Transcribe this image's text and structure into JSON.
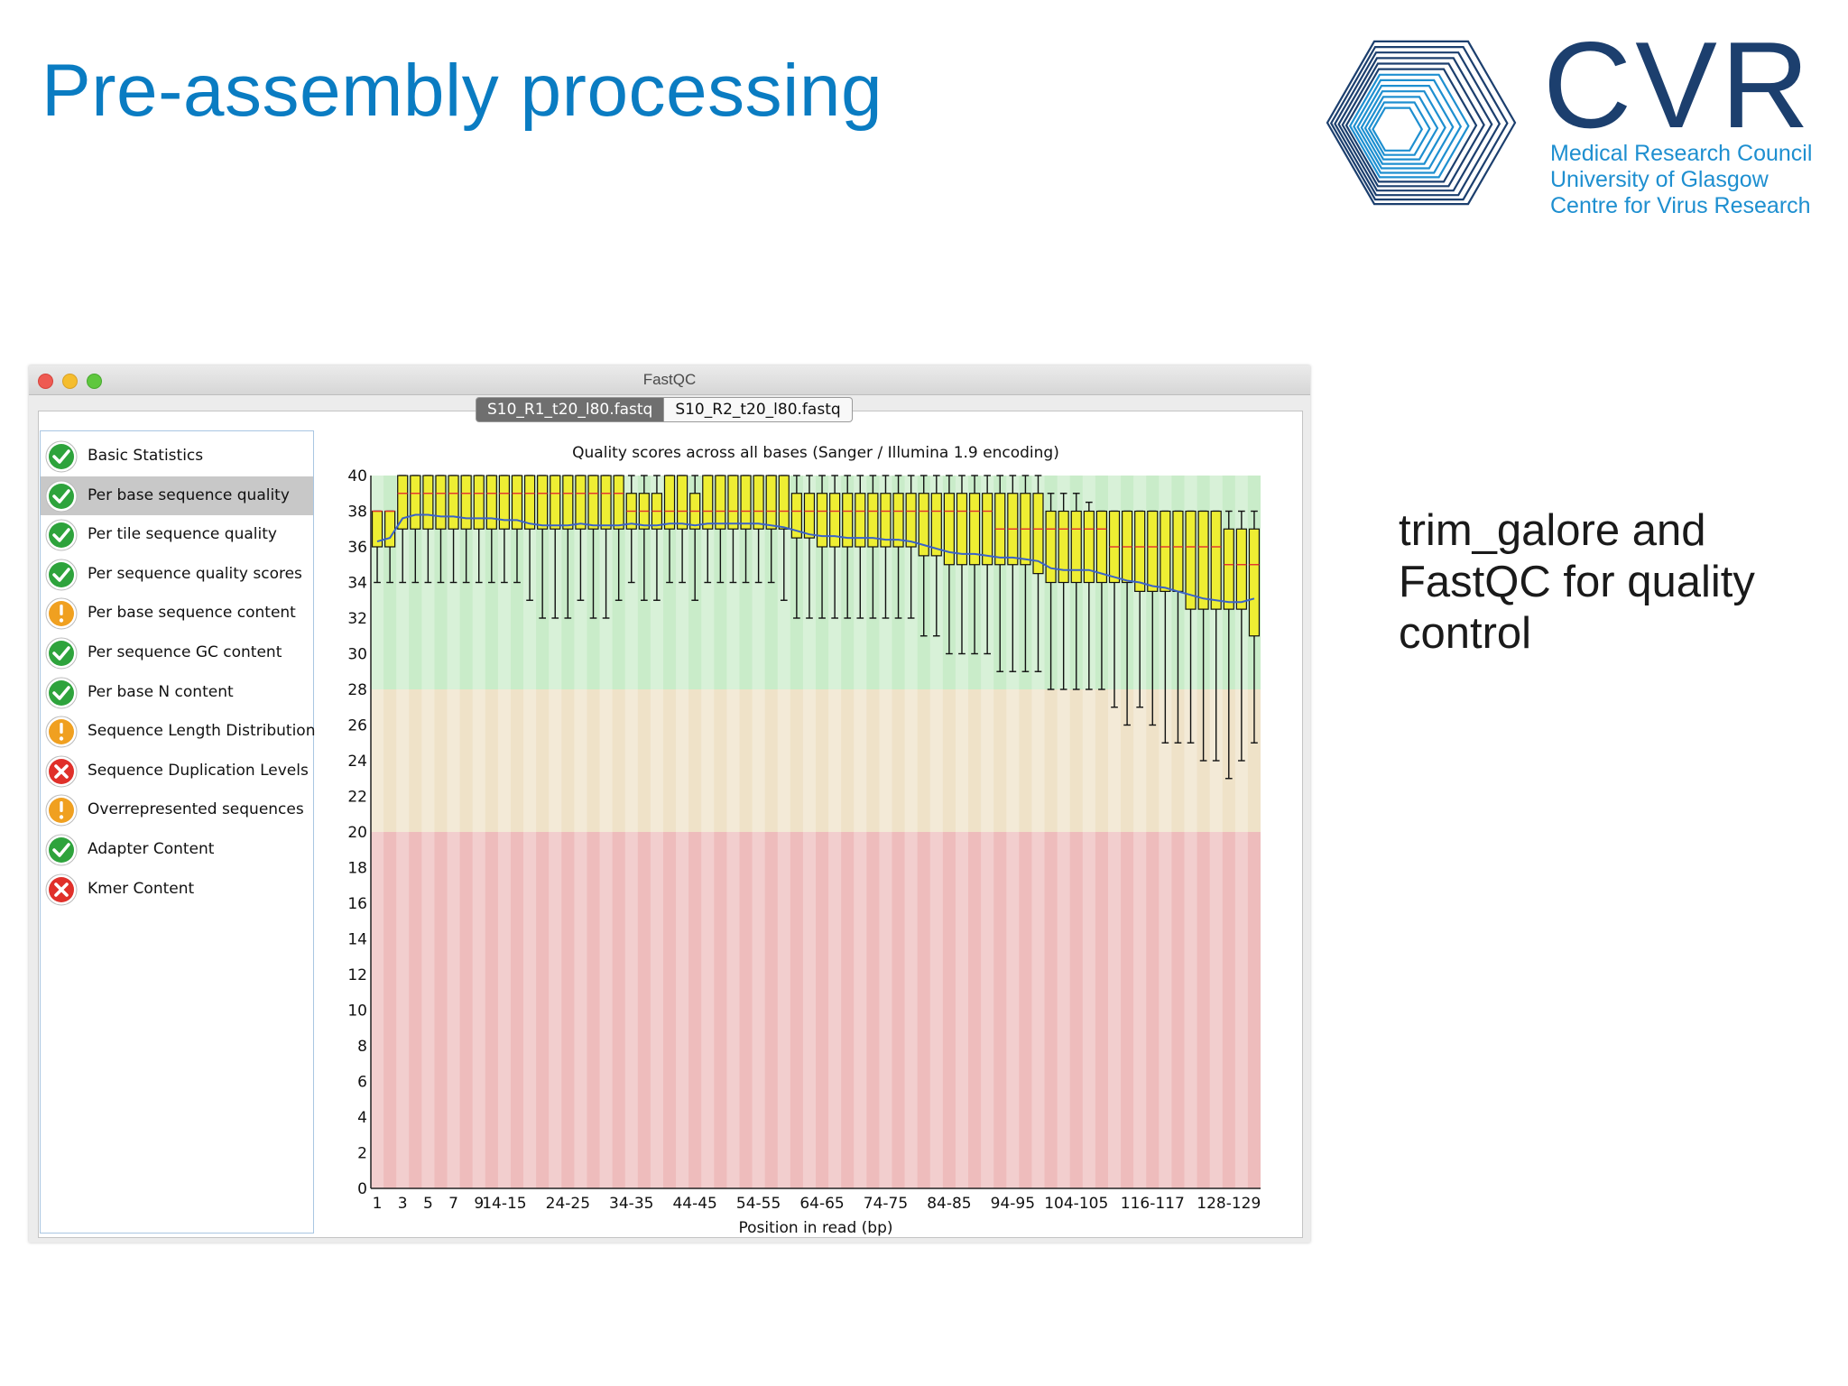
{
  "slide": {
    "title": "Pre-assembly processing",
    "side_text": "trim_galore and FastQC for quality control",
    "logo": {
      "name": "CVR",
      "lines": [
        "Medical Research Council",
        "University of Glasgow",
        "Centre for Virus Research"
      ],
      "colors": {
        "dark": "#1c3f6e",
        "light": "#1e8fd0"
      }
    },
    "title_color": "#0a7cc2"
  },
  "window": {
    "title": "FastQC",
    "tabs": [
      {
        "label": "S10_R1_t20_l80.fastq",
        "active": true
      },
      {
        "label": "S10_R2_t20_l80.fastq",
        "active": false
      }
    ]
  },
  "modules": [
    {
      "label": "Basic Statistics",
      "status": "pass"
    },
    {
      "label": "Per base sequence quality",
      "status": "pass",
      "selected": true
    },
    {
      "label": "Per tile sequence quality",
      "status": "pass"
    },
    {
      "label": "Per sequence quality scores",
      "status": "pass"
    },
    {
      "label": "Per base sequence content",
      "status": "warn"
    },
    {
      "label": "Per sequence GC content",
      "status": "pass"
    },
    {
      "label": "Per base N content",
      "status": "pass"
    },
    {
      "label": "Sequence Length Distribution",
      "status": "warn"
    },
    {
      "label": "Sequence Duplication Levels",
      "status": "fail"
    },
    {
      "label": "Overrepresented sequences",
      "status": "warn"
    },
    {
      "label": "Adapter Content",
      "status": "pass"
    },
    {
      "label": "Kmer Content",
      "status": "fail"
    }
  ],
  "status_colors": {
    "pass": "#2ea33c",
    "warn": "#f0a020",
    "fail": "#e0302a"
  },
  "chart_data": {
    "type": "boxplot",
    "title": "Quality scores across all bases (Sanger / Illumina 1.9 encoding)",
    "xlabel": "Position in read (bp)",
    "ylim": [
      0,
      40
    ],
    "yticks": [
      0,
      2,
      4,
      6,
      8,
      10,
      12,
      14,
      16,
      18,
      20,
      22,
      24,
      26,
      28,
      30,
      32,
      34,
      36,
      38,
      40
    ],
    "x_tick_labels": [
      "1",
      "3",
      "5",
      "7",
      "9",
      "14-15",
      "24-25",
      "34-35",
      "44-45",
      "54-55",
      "64-65",
      "74-75",
      "84-85",
      "94-95",
      "104-105",
      "116-117",
      "128-129"
    ],
    "x_tick_index": [
      0,
      2,
      4,
      6,
      8,
      10,
      15,
      20,
      25,
      30,
      35,
      40,
      45,
      50,
      55,
      61,
      67
    ],
    "bands": [
      {
        "from": 28,
        "to": 40,
        "color": "#c9ecc9"
      },
      {
        "from": 20,
        "to": 28,
        "color": "#efe2c8"
      },
      {
        "from": 0,
        "to": 20,
        "color": "#eebcbc"
      }
    ],
    "mean_line_color": "#3a62c8",
    "median_line_color": "#e03030",
    "box_color": "#eeee33",
    "n_positions": 70,
    "whisker_low": [
      34,
      34,
      34,
      34,
      34,
      34,
      34,
      34,
      34,
      34,
      34,
      34,
      33,
      32,
      32,
      32,
      33,
      32,
      32,
      33,
      34,
      33,
      33,
      34,
      34,
      33,
      34,
      34,
      34,
      34,
      34,
      34,
      33,
      32,
      32,
      32,
      32,
      32,
      32,
      32,
      32,
      32,
      32,
      31,
      31,
      30,
      30,
      30,
      30,
      29,
      29,
      29,
      29,
      28,
      28,
      28,
      28,
      28,
      27,
      26,
      27,
      26,
      25,
      25,
      25,
      24,
      24,
      23,
      24,
      25
    ],
    "q1": [
      36,
      36,
      37,
      37,
      37,
      37,
      37,
      37,
      37,
      37,
      37,
      37,
      37,
      37,
      37,
      37,
      37,
      37,
      37,
      37,
      37,
      37,
      37,
      37,
      37,
      37,
      37,
      37,
      37,
      37,
      37,
      37,
      37,
      36.5,
      36.5,
      36,
      36,
      36,
      36,
      36,
      36,
      36,
      36,
      35.5,
      35.5,
      35,
      35,
      35,
      35,
      35,
      35,
      35,
      34.5,
      34,
      34,
      34,
      34,
      34,
      34,
      34,
      33.5,
      33.5,
      33.5,
      33.5,
      32.5,
      32.5,
      32.5,
      32.5,
      32.5,
      31
    ],
    "median": [
      38,
      38,
      39,
      39,
      39,
      39,
      39,
      39,
      39,
      39,
      39,
      39,
      39,
      39,
      39,
      39,
      39,
      39,
      39,
      39,
      38,
      38,
      38,
      38,
      38,
      38,
      38,
      38,
      38,
      38,
      38,
      38,
      38,
      38,
      38,
      38,
      38,
      38,
      38,
      38,
      38,
      38,
      38,
      38,
      38,
      38,
      38,
      38,
      38,
      37,
      37,
      37,
      37,
      37,
      37,
      37,
      37,
      37,
      36,
      36,
      36,
      36,
      36,
      36,
      36,
      36,
      36,
      35,
      35,
      35
    ],
    "q3": [
      38,
      38,
      40,
      40,
      40,
      40,
      40,
      40,
      40,
      40,
      40,
      40,
      40,
      40,
      40,
      40,
      40,
      40,
      40,
      40,
      39,
      39,
      39,
      40,
      40,
      39,
      40,
      40,
      40,
      40,
      40,
      40,
      40,
      39,
      39,
      39,
      39,
      39,
      39,
      39,
      39,
      39,
      39,
      39,
      39,
      39,
      39,
      39,
      39,
      39,
      39,
      39,
      39,
      38,
      38,
      38,
      38,
      38,
      38,
      38,
      38,
      38,
      38,
      38,
      38,
      38,
      38,
      37,
      37,
      37
    ],
    "whisker_high": [
      38,
      38,
      40,
      40,
      40,
      40,
      40,
      40,
      40,
      40,
      40,
      40,
      40,
      40,
      40,
      40,
      40,
      40,
      40,
      40,
      40,
      40,
      40,
      40,
      40,
      40,
      40,
      40,
      40,
      40,
      40,
      40,
      40,
      40,
      40,
      40,
      40,
      40,
      40,
      40,
      40,
      40,
      40,
      40,
      40,
      40,
      40,
      40,
      40,
      40,
      40,
      40,
      40,
      39,
      39,
      39,
      38.5,
      38,
      38,
      38,
      38,
      38,
      38,
      38,
      38,
      38,
      38,
      38,
      38,
      38
    ],
    "mean": [
      36.3,
      36.5,
      37.6,
      37.8,
      37.8,
      37.7,
      37.7,
      37.6,
      37.6,
      37.6,
      37.5,
      37.5,
      37.3,
      37.2,
      37.2,
      37.2,
      37.3,
      37.2,
      37.2,
      37.2,
      37.3,
      37.2,
      37.2,
      37.3,
      37.3,
      37.2,
      37.3,
      37.3,
      37.3,
      37.3,
      37.3,
      37.2,
      37.1,
      36.9,
      36.7,
      36.6,
      36.6,
      36.5,
      36.5,
      36.5,
      36.4,
      36.4,
      36.3,
      36.1,
      35.9,
      35.7,
      35.6,
      35.6,
      35.5,
      35.4,
      35.4,
      35.3,
      35.2,
      34.8,
      34.7,
      34.7,
      34.7,
      34.5,
      34.3,
      34.1,
      34.0,
      33.8,
      33.7,
      33.5,
      33.3,
      33.1,
      33.0,
      32.9,
      32.9,
      33.1
    ]
  }
}
